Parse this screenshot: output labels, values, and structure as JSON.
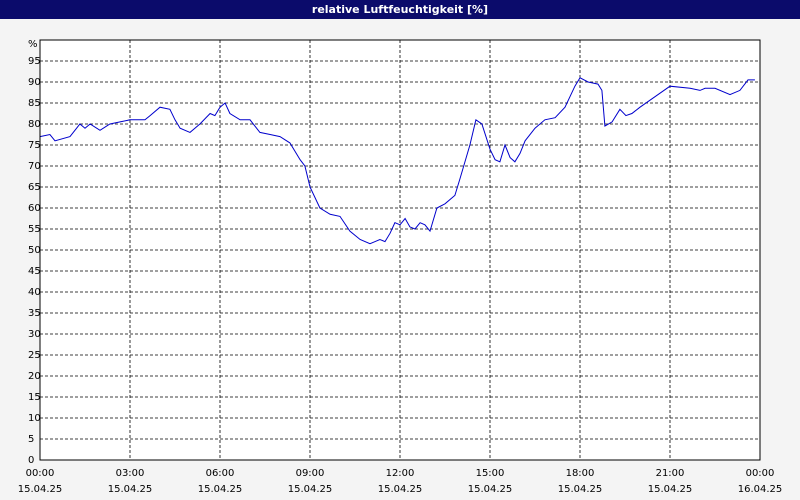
{
  "chart_data": {
    "type": "line",
    "title": "relative Luftfeuchtigkeit [%]",
    "ylabel": "%",
    "xlim": [
      0,
      24
    ],
    "xticks": [
      {
        "value": 0,
        "label": "00:00",
        "date": "15.04.25"
      },
      {
        "value": 3,
        "label": "03:00",
        "date": "15.04.25"
      },
      {
        "value": 6,
        "label": "06:00",
        "date": "15.04.25"
      },
      {
        "value": 9,
        "label": "09:00",
        "date": "15.04.25"
      },
      {
        "value": 12,
        "label": "12:00",
        "date": "15.04.25"
      },
      {
        "value": 15,
        "label": "15:00",
        "date": "15.04.25"
      },
      {
        "value": 18,
        "label": "18:00",
        "date": "15.04.25"
      },
      {
        "value": 21,
        "label": "21:00",
        "date": "15.04.25"
      },
      {
        "value": 24,
        "label": "00:00",
        "date": "16.04.25"
      }
    ],
    "ylim": [
      0,
      100
    ],
    "yticks": [
      0,
      5,
      10,
      15,
      20,
      25,
      30,
      35,
      40,
      45,
      50,
      55,
      60,
      65,
      70,
      75,
      80,
      85,
      90,
      95
    ],
    "grid": true,
    "series": [
      {
        "color": "#0000cc",
        "x": [
          0,
          0.33,
          0.5,
          1,
          1.33,
          1.5,
          1.67,
          2,
          2.33,
          2.67,
          3,
          3.5,
          3.67,
          4,
          4.33,
          4.5,
          4.67,
          5,
          5.33,
          5.67,
          5.83,
          6,
          6.17,
          6.33,
          6.67,
          7,
          7.33,
          7.67,
          8,
          8.33,
          8.67,
          8.83,
          9,
          9.33,
          9.67,
          10,
          10.33,
          10.67,
          11,
          11.17,
          11.33,
          11.5,
          11.67,
          11.83,
          12,
          12.17,
          12.33,
          12.5,
          12.67,
          12.83,
          13,
          13.23,
          13.5,
          13.83,
          14,
          14.33,
          14.53,
          14.73,
          15,
          15.17,
          15.33,
          15.5,
          15.67,
          15.83,
          16,
          16.17,
          16.5,
          16.83,
          17.17,
          17.5,
          17.83,
          18,
          18.27,
          18.6,
          18.73,
          18.83,
          19.07,
          19.33,
          19.53,
          19.73,
          20,
          20.5,
          21,
          21.67,
          22,
          22.17,
          22.5,
          23,
          23.33,
          23.6,
          23.83
        ],
        "values": [
          77,
          77.5,
          76,
          77,
          80,
          79,
          80,
          78.5,
          80,
          80.5,
          81,
          81,
          82,
          84,
          83.5,
          81,
          79,
          78,
          80,
          82.5,
          82,
          84,
          85,
          82.5,
          81,
          81,
          78,
          77.5,
          77,
          75.5,
          71.5,
          70,
          65,
          60,
          58.5,
          58,
          54.5,
          52.5,
          51.5,
          52,
          52.5,
          52,
          54,
          56.5,
          56,
          57.5,
          55.5,
          55,
          56.5,
          56,
          54.5,
          60,
          61,
          63,
          67,
          75,
          81,
          80,
          74,
          71.5,
          71,
          75,
          72,
          71,
          73,
          76,
          79,
          81,
          81.5,
          84,
          89,
          91,
          90,
          89.5,
          88,
          79.5,
          80.5,
          83.5,
          82,
          82.5,
          84,
          86.5,
          89,
          88.5,
          88,
          88.5,
          88.5,
          87,
          88,
          90.5,
          90.5
        ]
      }
    ]
  }
}
